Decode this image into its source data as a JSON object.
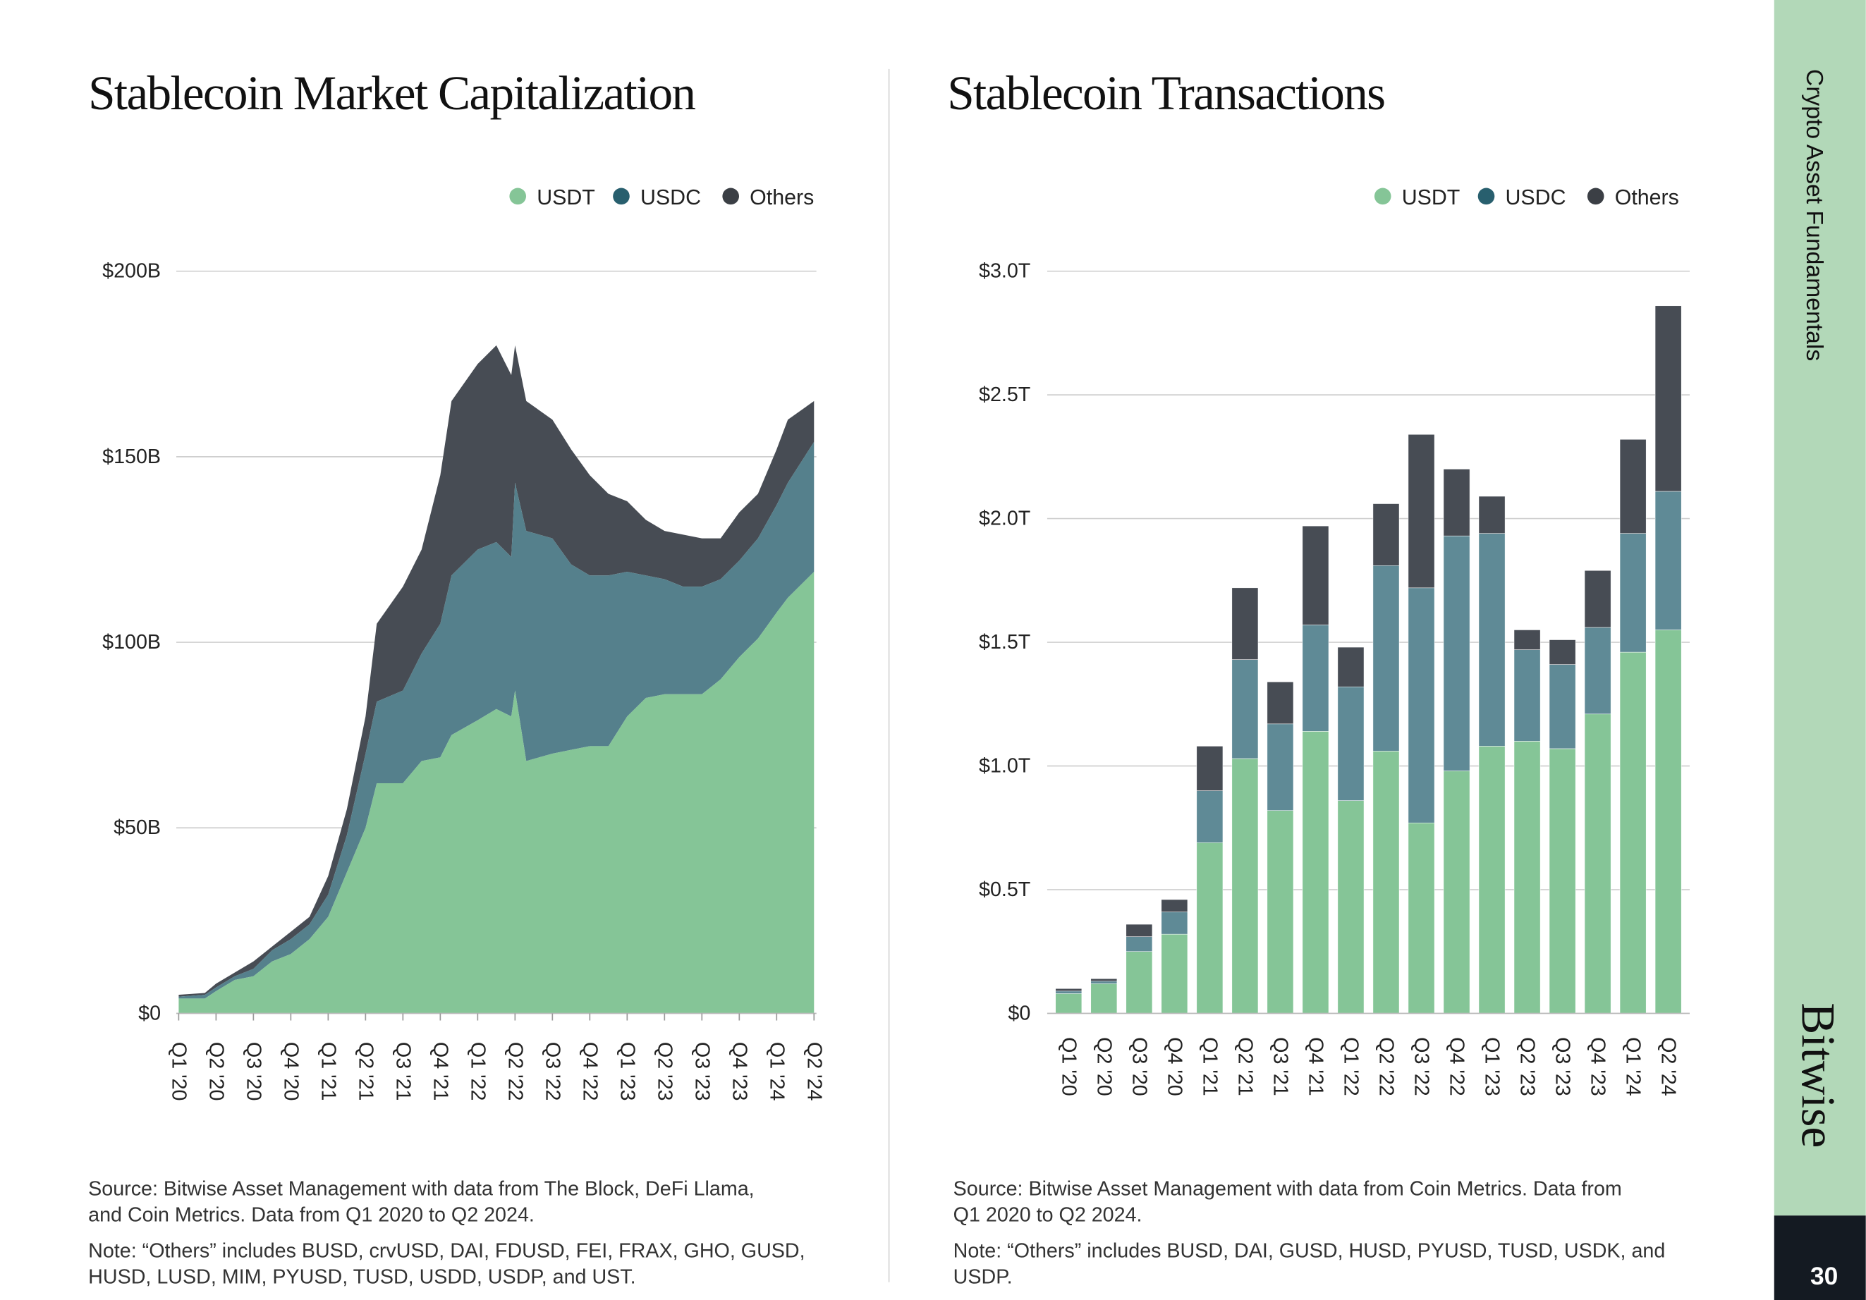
{
  "colors": {
    "usdt": "#85c597",
    "usdc": "#5b8591",
    "others": "#474c54",
    "sidebar": "#b2d8b8",
    "page_block": "#141a22"
  },
  "sidebar": {
    "section": "Crypto Asset Fundamentals",
    "brand": "Bitwise",
    "page_number": "30"
  },
  "chart_data": [
    {
      "type": "area",
      "title": "Stablecoin Market Capitalization",
      "legend": [
        "USDT",
        "USDC",
        "Others"
      ],
      "legend_position": "top-right",
      "ylim": [
        0,
        200
      ],
      "yticks": [
        {
          "v": 0,
          "label": "$0"
        },
        {
          "v": 50,
          "label": "$50B"
        },
        {
          "v": 100,
          "label": "$100B"
        },
        {
          "v": 150,
          "label": "$150B"
        },
        {
          "v": 200,
          "label": "$200B"
        }
      ],
      "xticks": [
        "Q1 '20",
        "Q2 '20",
        "Q3 '20",
        "Q4 '20",
        "Q1 '21",
        "Q2 '21",
        "Q3 '21",
        "Q4 '21",
        "Q1 '22",
        "Q2 '22",
        "Q3 '22",
        "Q4 '22",
        "Q1 '23",
        "Q2 '23",
        "Q3 '23",
        "Q4 '23",
        "Q1 '24",
        "Q2 '24"
      ],
      "x_unit": "quarter index from Q1 '20",
      "y_unit": "USD billions (stacked cumulative: USDT, USDT+USDC, total)",
      "points": [
        [
          0,
          4,
          4.5,
          5
        ],
        [
          0.7,
          4,
          5,
          5.5
        ],
        [
          1,
          6,
          7,
          8
        ],
        [
          1.5,
          9,
          10,
          11
        ],
        [
          2,
          10,
          12,
          14
        ],
        [
          2.5,
          14,
          17,
          18
        ],
        [
          3,
          16,
          20,
          22
        ],
        [
          3.5,
          20,
          24,
          26
        ],
        [
          4,
          26,
          32,
          37
        ],
        [
          4.5,
          38,
          48,
          55
        ],
        [
          5,
          50,
          70,
          80
        ],
        [
          5.3,
          62,
          84,
          105
        ],
        [
          6,
          62,
          87,
          115
        ],
        [
          6.5,
          68,
          97,
          125
        ],
        [
          7,
          69,
          105,
          145
        ],
        [
          7.3,
          75,
          118,
          165
        ],
        [
          8,
          79,
          125,
          175
        ],
        [
          8.5,
          82,
          127,
          180
        ],
        [
          8.9,
          80,
          123,
          172
        ],
        [
          9,
          87,
          143,
          180
        ],
        [
          9.3,
          68,
          130,
          165
        ],
        [
          10,
          70,
          128,
          160
        ],
        [
          10.5,
          71,
          121,
          152
        ],
        [
          11,
          72,
          118,
          145
        ],
        [
          11.5,
          72,
          118,
          140
        ],
        [
          12,
          80,
          119,
          138
        ],
        [
          12.5,
          85,
          118,
          133
        ],
        [
          13,
          86,
          117,
          130
        ],
        [
          13.5,
          86,
          115,
          129
        ],
        [
          14,
          86,
          115,
          128
        ],
        [
          14.5,
          90,
          117,
          128
        ],
        [
          15,
          96,
          122,
          135
        ],
        [
          15.5,
          101,
          128,
          140
        ],
        [
          16,
          108,
          137,
          152
        ],
        [
          16.3,
          112,
          143,
          160
        ],
        [
          17,
          119,
          154,
          165
        ]
      ],
      "source": [
        "Source: Bitwise Asset Management with data from The Block, DeFi Llama,",
        "and Coin Metrics. Data from Q1 2020 to Q2 2024."
      ],
      "note": [
        "Note: “Others” includes BUSD, crvUSD, DAI, FDUSD, FEI, FRAX, GHO, GUSD,",
        "HUSD, LUSD, MIM, PYUSD, TUSD, USDD, USDP, and UST."
      ]
    },
    {
      "type": "bar",
      "stacked": true,
      "title": "Stablecoin Transactions",
      "legend": [
        "USDT",
        "USDC",
        "Others"
      ],
      "legend_position": "top-right",
      "ylim": [
        0,
        3.0
      ],
      "yticks": [
        {
          "v": 0,
          "label": "$0"
        },
        {
          "v": 0.5,
          "label": "$0.5T"
        },
        {
          "v": 1.0,
          "label": "$1.0T"
        },
        {
          "v": 1.5,
          "label": "$1.5T"
        },
        {
          "v": 2.0,
          "label": "$2.0T"
        },
        {
          "v": 2.5,
          "label": "$2.5T"
        },
        {
          "v": 3.0,
          "label": "$3.0T"
        }
      ],
      "categories": [
        "Q1 '20",
        "Q2 '20",
        "Q3 '20",
        "Q4 '20",
        "Q1 '21",
        "Q2 '21",
        "Q3 '21",
        "Q4 '21",
        "Q1 '22",
        "Q2 '22",
        "Q3 '22",
        "Q4 '22",
        "Q1 '23",
        "Q2 '23",
        "Q3 '23",
        "Q4 '23",
        "Q1 '24",
        "Q2 '24"
      ],
      "y_unit": "USD trillions",
      "series": [
        {
          "name": "USDT",
          "values": [
            0.08,
            0.12,
            0.25,
            0.32,
            0.69,
            1.03,
            0.82,
            1.14,
            0.86,
            1.06,
            0.77,
            0.98,
            1.08,
            1.1,
            1.07,
            1.21,
            1.46,
            1.55
          ]
        },
        {
          "name": "USDC",
          "values": [
            0.01,
            0.01,
            0.06,
            0.09,
            0.21,
            0.4,
            0.35,
            0.43,
            0.46,
            0.75,
            0.95,
            0.95,
            0.86,
            0.37,
            0.34,
            0.35,
            0.48,
            0.56
          ]
        },
        {
          "name": "Others",
          "values": [
            0.01,
            0.01,
            0.05,
            0.05,
            0.18,
            0.29,
            0.17,
            0.4,
            0.16,
            0.25,
            0.62,
            0.27,
            0.15,
            0.08,
            0.1,
            0.23,
            0.38,
            0.75
          ]
        }
      ],
      "source": [
        "Source: Bitwise Asset Management with data from Coin Metrics. Data from",
        "Q1 2020 to Q2 2024."
      ],
      "note": [
        "Note: “Others” includes BUSD, DAI, GUSD, HUSD, PYUSD, TUSD, USDK, and",
        "USDP."
      ]
    }
  ]
}
